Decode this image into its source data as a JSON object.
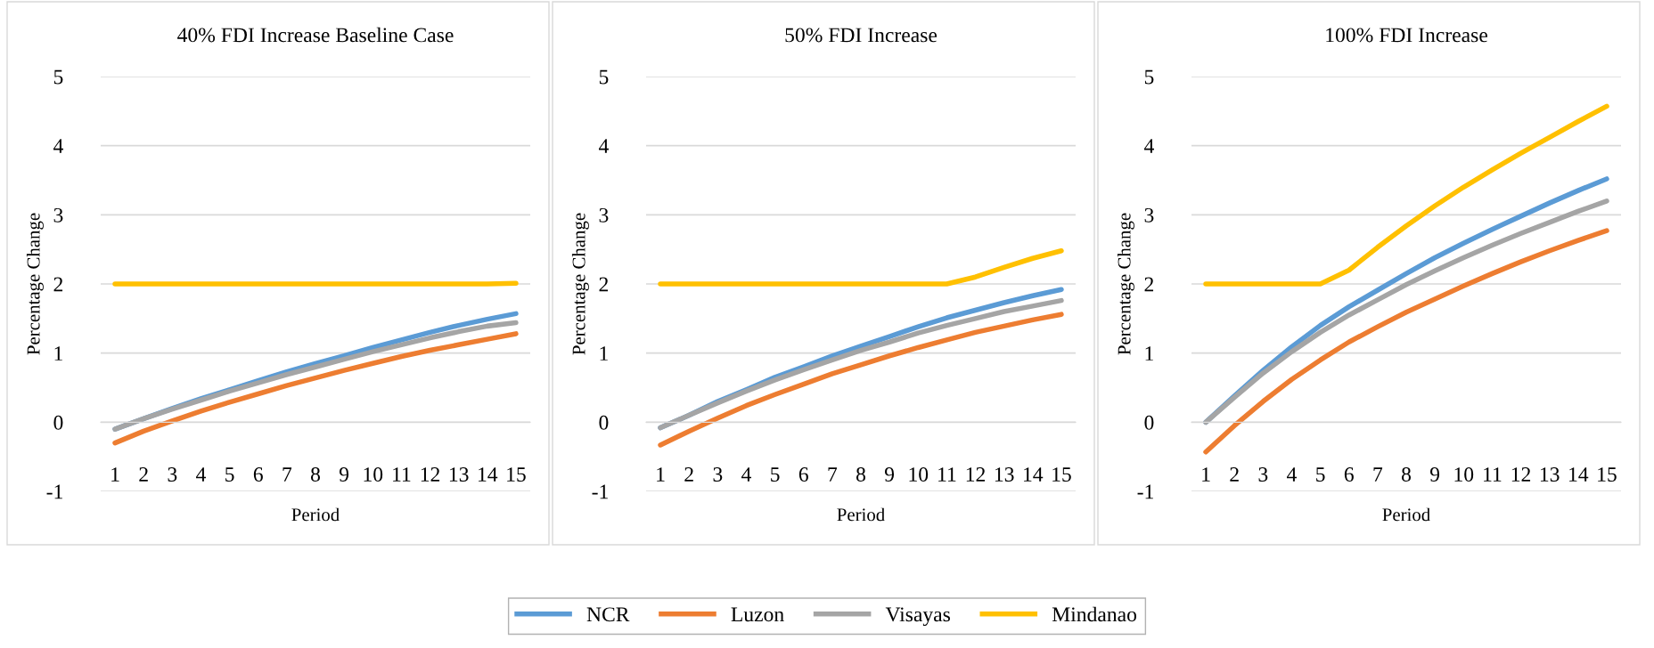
{
  "chart_data": [
    {
      "type": "line",
      "title": "40% FDI Increase Baseline Case",
      "xlabel": "Period",
      "ylabel": "Percentage Change",
      "categories": [
        "1",
        "2",
        "3",
        "4",
        "5",
        "6",
        "7",
        "8",
        "9",
        "10",
        "11",
        "12",
        "13",
        "14",
        "15"
      ],
      "ylim": [
        -1,
        5
      ],
      "yticks": [
        -1,
        0,
        1,
        2,
        3,
        4,
        5
      ],
      "grid": "y",
      "legend": "bottom",
      "marker": "none",
      "line_style": "solid",
      "series": [
        {
          "name": "NCR",
          "color": "#5b9bd5",
          "values": [
            -0.1,
            0.05,
            0.2,
            0.34,
            0.47,
            0.6,
            0.73,
            0.85,
            0.96,
            1.08,
            1.19,
            1.3,
            1.4,
            1.49,
            1.57
          ]
        },
        {
          "name": "Luzon",
          "color": "#ed7d31",
          "values": [
            -0.3,
            -0.13,
            0.02,
            0.16,
            0.29,
            0.41,
            0.53,
            0.64,
            0.75,
            0.85,
            0.95,
            1.04,
            1.12,
            1.2,
            1.28
          ]
        },
        {
          "name": "Visayas",
          "color": "#a5a5a5",
          "values": [
            -0.1,
            0.05,
            0.19,
            0.32,
            0.45,
            0.57,
            0.69,
            0.8,
            0.91,
            1.02,
            1.12,
            1.22,
            1.31,
            1.39,
            1.44
          ]
        },
        {
          "name": "Mindanao",
          "color": "#ffc000",
          "values": [
            2,
            2,
            2,
            2,
            2,
            2,
            2,
            2,
            2,
            2,
            2,
            2,
            2,
            2,
            2.01
          ]
        }
      ]
    },
    {
      "type": "line",
      "title": "50% FDI Increase",
      "xlabel": "Period",
      "ylabel": "Percentage Change",
      "categories": [
        "1",
        "2",
        "3",
        "4",
        "5",
        "6",
        "7",
        "8",
        "9",
        "10",
        "11",
        "12",
        "13",
        "14",
        "15"
      ],
      "ylim": [
        -1,
        5
      ],
      "yticks": [
        -1,
        0,
        1,
        2,
        3,
        4,
        5
      ],
      "grid": "y",
      "legend": "bottom",
      "marker": "none",
      "line_style": "solid",
      "series": [
        {
          "name": "NCR",
          "color": "#5b9bd5",
          "values": [
            -0.08,
            0.1,
            0.3,
            0.47,
            0.65,
            0.8,
            0.96,
            1.1,
            1.24,
            1.38,
            1.51,
            1.62,
            1.73,
            1.83,
            1.92
          ]
        },
        {
          "name": "Luzon",
          "color": "#ed7d31",
          "values": [
            -0.33,
            -0.13,
            0.06,
            0.24,
            0.4,
            0.55,
            0.7,
            0.83,
            0.96,
            1.08,
            1.19,
            1.3,
            1.39,
            1.48,
            1.56
          ]
        },
        {
          "name": "Visayas",
          "color": "#a5a5a5",
          "values": [
            -0.08,
            0.1,
            0.28,
            0.45,
            0.61,
            0.76,
            0.9,
            1.04,
            1.16,
            1.29,
            1.4,
            1.5,
            1.6,
            1.68,
            1.76
          ]
        },
        {
          "name": "Mindanao",
          "color": "#ffc000",
          "values": [
            2,
            2,
            2,
            2,
            2,
            2,
            2,
            2,
            2,
            2,
            2,
            2.1,
            2.24,
            2.37,
            2.48
          ]
        }
      ]
    },
    {
      "type": "line",
      "title": "100% FDI Increase",
      "xlabel": "Period",
      "ylabel": "Percentage Change",
      "categories": [
        "1",
        "2",
        "3",
        "4",
        "5",
        "6",
        "7",
        "8",
        "9",
        "10",
        "11",
        "12",
        "13",
        "14",
        "15"
      ],
      "ylim": [
        -1,
        5
      ],
      "yticks": [
        -1,
        0,
        1,
        2,
        3,
        4,
        5
      ],
      "grid": "y",
      "legend": "bottom",
      "marker": "none",
      "line_style": "solid",
      "series": [
        {
          "name": "NCR",
          "color": "#5b9bd5",
          "values": [
            0,
            0.38,
            0.75,
            1.09,
            1.4,
            1.67,
            1.91,
            2.15,
            2.38,
            2.59,
            2.79,
            2.98,
            3.17,
            3.35,
            3.52
          ]
        },
        {
          "name": "Luzon",
          "color": "#ed7d31",
          "values": [
            -0.43,
            -0.05,
            0.3,
            0.62,
            0.9,
            1.16,
            1.38,
            1.59,
            1.78,
            1.97,
            2.15,
            2.32,
            2.48,
            2.63,
            2.77
          ]
        },
        {
          "name": "Visayas",
          "color": "#a5a5a5",
          "values": [
            0,
            0.36,
            0.71,
            1.02,
            1.3,
            1.55,
            1.77,
            1.99,
            2.19,
            2.38,
            2.56,
            2.73,
            2.89,
            3.05,
            3.2
          ]
        },
        {
          "name": "Mindanao",
          "color": "#ffc000",
          "values": [
            2,
            2,
            2,
            2,
            2,
            2.2,
            2.53,
            2.84,
            3.13,
            3.4,
            3.65,
            3.89,
            4.12,
            4.35,
            4.57
          ]
        }
      ]
    }
  ]
}
